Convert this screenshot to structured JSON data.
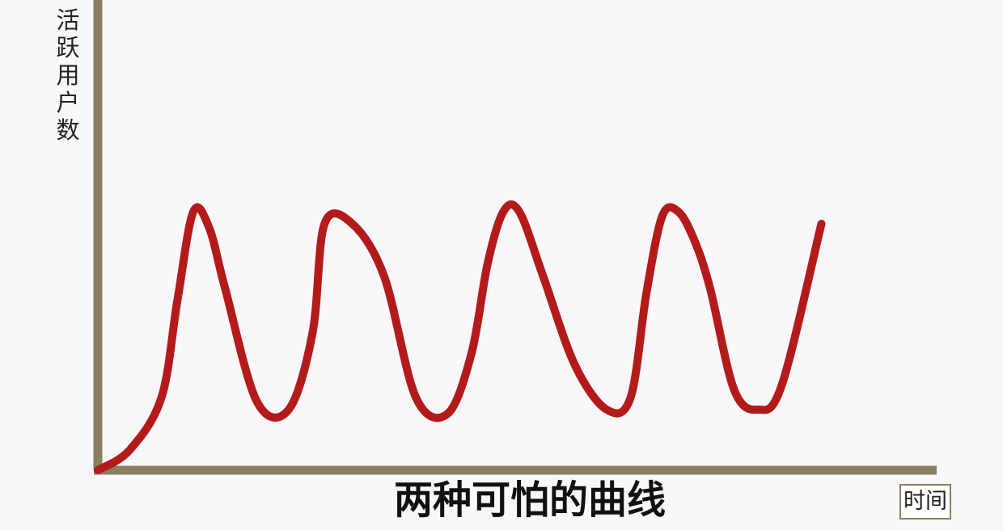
{
  "chart_data": {
    "type": "line",
    "title": "两种可怕的曲线",
    "xlabel": "时间",
    "ylabel": "活跃用户数",
    "xlim": [
      0,
      100
    ],
    "ylim": [
      0,
      100
    ],
    "grid": false,
    "legend": "none",
    "axis_color": "#8b7f5e",
    "line_color": "#b31b1b",
    "series": [
      {
        "x": [
          0,
          4,
          8,
          10,
          12,
          14,
          16,
          20,
          24,
          27,
          28.5,
          32,
          36,
          40,
          44,
          47,
          49,
          51,
          53,
          56,
          60,
          64,
          67,
          69,
          71,
          73,
          75,
          77,
          80,
          83,
          86,
          91
        ],
        "y": [
          0,
          5,
          18,
          42,
          64,
          60,
          45,
          17,
          15,
          34,
          61,
          61,
          48,
          18,
          14,
          29,
          51,
          64,
          64,
          48,
          26,
          15,
          18,
          44,
          63,
          64,
          57,
          45,
          20,
          15,
          21,
          61
        ]
      }
    ]
  }
}
